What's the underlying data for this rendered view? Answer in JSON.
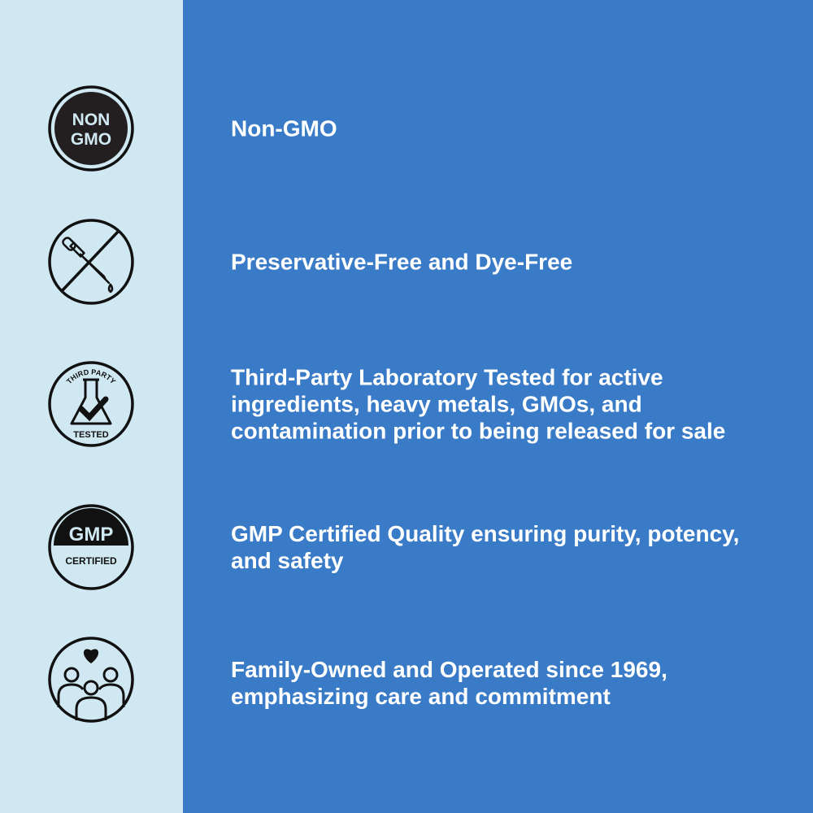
{
  "colors": {
    "left_panel": "#d0e8f2",
    "right_panel": "#3a7bc8",
    "text": "#ffffff",
    "icon": "#111111"
  },
  "features": [
    {
      "icon": "non-gmo-badge-icon",
      "badge_text": [
        "NON",
        "GMO"
      ],
      "text": "Non-GMO"
    },
    {
      "icon": "no-dropper-icon",
      "text": "Preservative-Free and Dye-Free"
    },
    {
      "icon": "third-party-tested-icon",
      "badge_text": [
        "THIRD PARTY",
        "TESTED"
      ],
      "text": "Third-Party Laboratory Tested for active ingredients, heavy metals, GMOs, and contamination prior to being released for sale"
    },
    {
      "icon": "gmp-certified-icon",
      "badge_text": [
        "GMP",
        "CERTIFIED"
      ],
      "text": "GMP Certified Quality ensuring purity, potency, and safety"
    },
    {
      "icon": "family-heart-icon",
      "text": "Family-Owned and Operated since 1969, emphasizing care and commitment"
    }
  ]
}
